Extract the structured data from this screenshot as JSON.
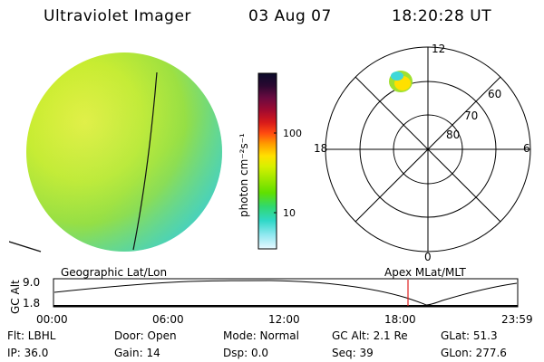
{
  "header": {
    "instrument": "Ultraviolet Imager",
    "date": "03 Aug 07",
    "time": "18:20:28 UT"
  },
  "colorbar": {
    "unit_label": "photon cm⁻²s⁻¹",
    "ticks": [
      {
        "label": "100",
        "value": 100
      },
      {
        "label": "10",
        "value": 10
      }
    ],
    "colors": [
      "#0a0a2a",
      "#2a0830",
      "#6a0a40",
      "#a00a30",
      "#d81a1a",
      "#ff4a10",
      "#ff9a00",
      "#ffe000",
      "#d8f000",
      "#a0e800",
      "#60e000",
      "#30d870",
      "#30d8c8",
      "#90e8f0",
      "#e8f8ff"
    ]
  },
  "polar": {
    "mlt_labels": [
      {
        "label": "12",
        "pos": "top"
      },
      {
        "label": "18",
        "pos": "left"
      },
      {
        "label": "6",
        "pos": "right"
      },
      {
        "label": "0",
        "pos": "bottom"
      }
    ],
    "lat_labels": [
      "60",
      "70",
      "80"
    ]
  },
  "timeline": {
    "y_axis_label": "GC Alt",
    "y_ticks": [
      "9.0",
      "1.8"
    ],
    "left_title": "Geographic Lat/Lon",
    "right_title": "Apex  MLat/MLT",
    "x_ticks": [
      "00:00",
      "06:00",
      "12:00",
      "18:00",
      "23:59"
    ],
    "marker_time": "18:20"
  },
  "status": {
    "filter": "Flt: LBHL",
    "ip": "IP: 36.0",
    "door": "Door: Open",
    "gain": "Gain: 14",
    "mode": "Mode: Normal",
    "dsp": "Dsp:     0.0",
    "gc_alt": "GC Alt: 2.1 Re",
    "seq": "Seq: 39",
    "glat": "GLat:  51.3",
    "glon": "GLon: 277.6"
  }
}
